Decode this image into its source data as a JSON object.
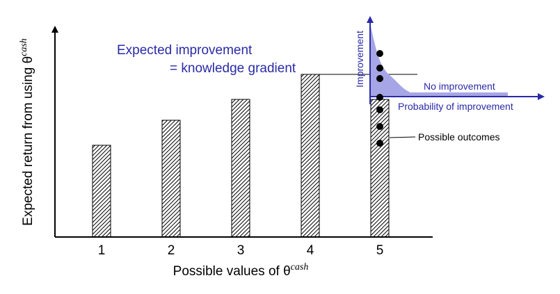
{
  "chart_data": {
    "type": "bar",
    "title": "",
    "xlabel": "Possible values of θ",
    "xlabel_sup": "cash",
    "ylabel": "Expected return from using θ",
    "ylabel_sup": "cash",
    "categories": [
      "1",
      "2",
      "3",
      "4",
      "5"
    ],
    "values": [
      0.44,
      0.56,
      0.66,
      0.78,
      0.66
    ],
    "ylim": [
      0,
      1
    ],
    "grid": false,
    "bar_pattern": "diagonal-hatch",
    "annotation": {
      "title_line1": "Expected improvement",
      "title_line2": "= knowledge gradient",
      "color": "#2a2aa8"
    },
    "possible_outcomes": {
      "label": "Possible outcomes",
      "category": "5",
      "values": [
        0.88,
        0.81,
        0.76,
        0.67,
        0.61,
        0.53,
        0.45
      ]
    },
    "inset": {
      "xlabel": "Probability of improvement",
      "ylabel": "Improvement",
      "baseline_label": "No improvement",
      "fill_color": "#a6a6e6",
      "axis_color": "#2a2aa8"
    }
  }
}
